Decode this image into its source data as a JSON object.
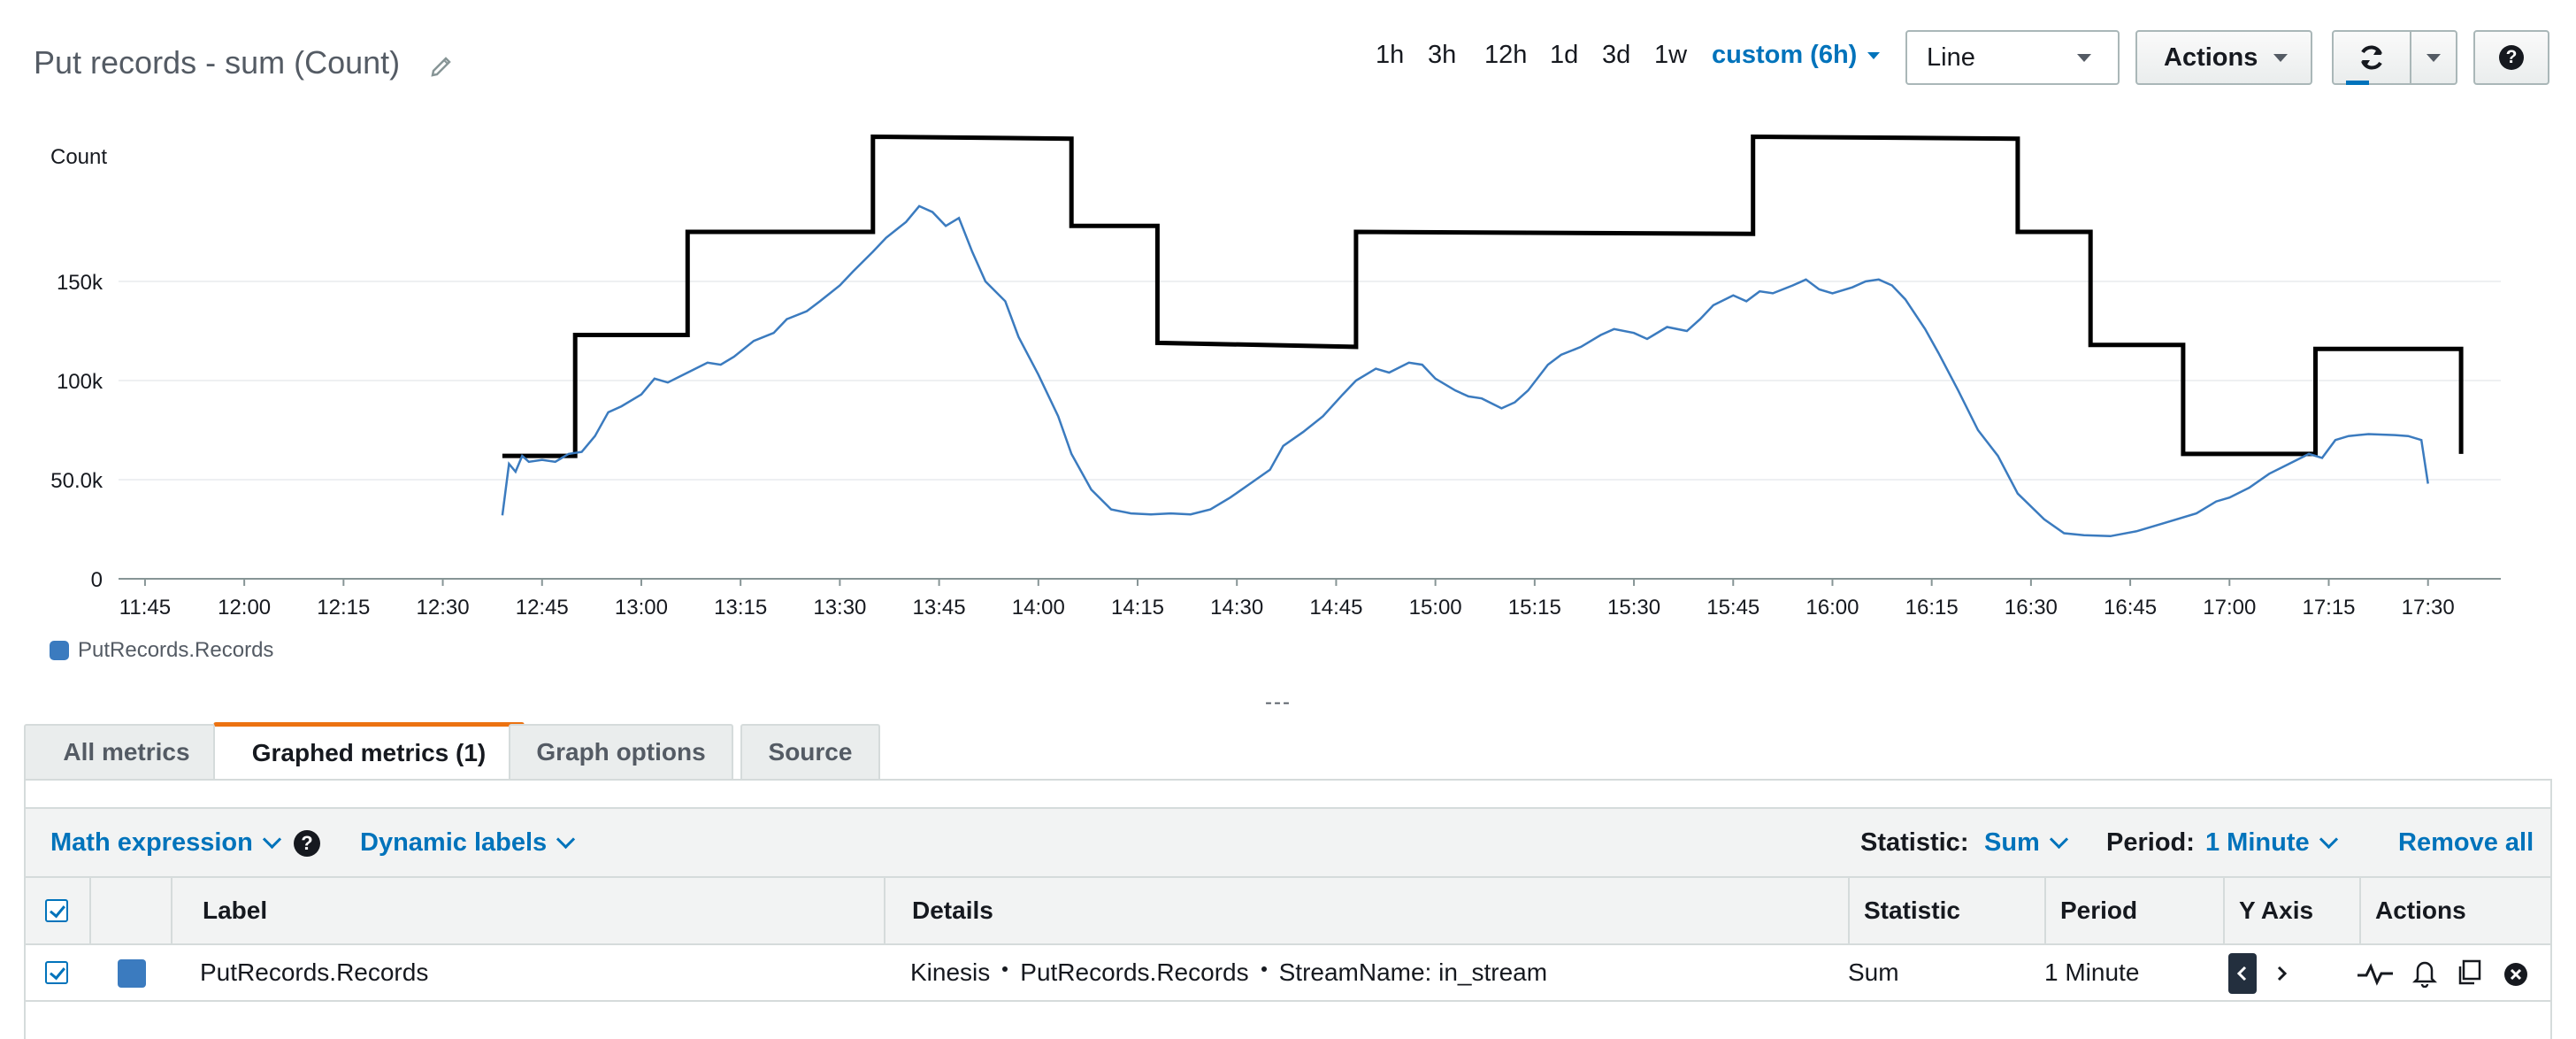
{
  "graph": {
    "title": "Put records - sum (Count)",
    "edit_icon": "pencil-icon"
  },
  "time_ranges": [
    "1h",
    "3h",
    "12h",
    "1d",
    "3d",
    "1w"
  ],
  "custom_range": "custom (6h)",
  "view_select": {
    "value": "Line"
  },
  "actions_label": "Actions",
  "refresh_icon": "refresh-icon",
  "help_icon": "help-icon",
  "chart_data": {
    "type": "line",
    "ylabel": "Count",
    "y_ticks": [
      "0",
      "50.0k",
      "100k",
      "150k"
    ],
    "ylim": [
      0,
      225000
    ],
    "x_ticks": [
      "11:45",
      "12:00",
      "12:15",
      "12:30",
      "12:45",
      "13:00",
      "13:15",
      "13:30",
      "13:45",
      "14:00",
      "14:15",
      "14:30",
      "14:45",
      "15:00",
      "15:15",
      "15:30",
      "15:45",
      "16:00",
      "16:15",
      "16:30",
      "16:45",
      "17:00",
      "17:15",
      "17:30"
    ],
    "xlim_minutes": [
      701,
      1061
    ],
    "grid": "horizontal",
    "legend_position": "bottom-left",
    "series": [
      {
        "name": "PutRecords.Records",
        "color": "#3b7bbf",
        "points": [
          [
            "12:39",
            32000
          ],
          [
            "12:40",
            58000
          ],
          [
            "12:41",
            54000
          ],
          [
            "12:42",
            62000
          ],
          [
            "12:43",
            59000
          ],
          [
            "12:45",
            60000
          ],
          [
            "12:47",
            59000
          ],
          [
            "12:49",
            63000
          ],
          [
            "12:51",
            64000
          ],
          [
            "12:53",
            72000
          ],
          [
            "12:55",
            84000
          ],
          [
            "12:57",
            87000
          ],
          [
            "13:00",
            93000
          ],
          [
            "13:02",
            101000
          ],
          [
            "13:04",
            99000
          ],
          [
            "13:07",
            104000
          ],
          [
            "13:10",
            109000
          ],
          [
            "13:12",
            108000
          ],
          [
            "13:14",
            112000
          ],
          [
            "13:17",
            120000
          ],
          [
            "13:20",
            124000
          ],
          [
            "13:22",
            131000
          ],
          [
            "13:25",
            135000
          ],
          [
            "13:27",
            140000
          ],
          [
            "13:30",
            148000
          ],
          [
            "13:32",
            155000
          ],
          [
            "13:35",
            165000
          ],
          [
            "13:37",
            172000
          ],
          [
            "13:40",
            180000
          ],
          [
            "13:42",
            188000
          ],
          [
            "13:44",
            185000
          ],
          [
            "13:46",
            178000
          ],
          [
            "13:48",
            182000
          ],
          [
            "13:50",
            165000
          ],
          [
            "13:52",
            150000
          ],
          [
            "13:55",
            140000
          ],
          [
            "13:57",
            122000
          ],
          [
            "14:00",
            103000
          ],
          [
            "14:03",
            82000
          ],
          [
            "14:05",
            63000
          ],
          [
            "14:08",
            45000
          ],
          [
            "14:11",
            35000
          ],
          [
            "14:14",
            33000
          ],
          [
            "14:17",
            32500
          ],
          [
            "14:20",
            33000
          ],
          [
            "14:23",
            32500
          ],
          [
            "14:26",
            35000
          ],
          [
            "14:29",
            41000
          ],
          [
            "14:32",
            48000
          ],
          [
            "14:35",
            55000
          ],
          [
            "14:37",
            67000
          ],
          [
            "14:40",
            74000
          ],
          [
            "14:43",
            82000
          ],
          [
            "14:46",
            93000
          ],
          [
            "14:48",
            100000
          ],
          [
            "14:51",
            106000
          ],
          [
            "14:53",
            104000
          ],
          [
            "14:56",
            109000
          ],
          [
            "14:58",
            108000
          ],
          [
            "15:00",
            101000
          ],
          [
            "15:03",
            95000
          ],
          [
            "15:05",
            92000
          ],
          [
            "15:07",
            91000
          ],
          [
            "15:10",
            86000
          ],
          [
            "15:12",
            89000
          ],
          [
            "15:14",
            95000
          ],
          [
            "15:17",
            108000
          ],
          [
            "15:19",
            113000
          ],
          [
            "15:22",
            117000
          ],
          [
            "15:25",
            123000
          ],
          [
            "15:27",
            126000
          ],
          [
            "15:30",
            124000
          ],
          [
            "15:32",
            121000
          ],
          [
            "15:35",
            127000
          ],
          [
            "15:38",
            125000
          ],
          [
            "15:40",
            131000
          ],
          [
            "15:42",
            138000
          ],
          [
            "15:45",
            143000
          ],
          [
            "15:47",
            140000
          ],
          [
            "15:49",
            145000
          ],
          [
            "15:51",
            144000
          ],
          [
            "15:54",
            148000
          ],
          [
            "15:56",
            151000
          ],
          [
            "15:58",
            146000
          ],
          [
            "16:00",
            144000
          ],
          [
            "16:03",
            147000
          ],
          [
            "16:05",
            150000
          ],
          [
            "16:07",
            151000
          ],
          [
            "16:09",
            148000
          ],
          [
            "16:11",
            141000
          ],
          [
            "16:14",
            126000
          ],
          [
            "16:16",
            114000
          ],
          [
            "16:19",
            95000
          ],
          [
            "16:22",
            75000
          ],
          [
            "16:25",
            62000
          ],
          [
            "16:28",
            43000
          ],
          [
            "16:32",
            30000
          ],
          [
            "16:35",
            23000
          ],
          [
            "16:38",
            22000
          ],
          [
            "16:42",
            21500
          ],
          [
            "16:46",
            24000
          ],
          [
            "16:50",
            28000
          ],
          [
            "16:55",
            33000
          ],
          [
            "16:58",
            39000
          ],
          [
            "17:00",
            41000
          ],
          [
            "17:03",
            46000
          ],
          [
            "17:06",
            53000
          ],
          [
            "17:09",
            58000
          ],
          [
            "17:12",
            63000
          ],
          [
            "17:14",
            61000
          ],
          [
            "17:16",
            70000
          ],
          [
            "17:18",
            72000
          ],
          [
            "17:21",
            73000
          ],
          [
            "17:25",
            72500
          ],
          [
            "17:27",
            72000
          ],
          [
            "17:29",
            70000
          ],
          [
            "17:30",
            48000
          ]
        ]
      }
    ],
    "annotation_steps": {
      "color": "#000000",
      "points": [
        [
          "12:39",
          62000
        ],
        [
          "12:50",
          62000
        ],
        [
          "12:50",
          123000
        ],
        [
          "13:07",
          123000
        ],
        [
          "13:07",
          175000
        ],
        [
          "13:35",
          175000
        ],
        [
          "13:35",
          223000
        ],
        [
          "14:05",
          222000
        ],
        [
          "14:05",
          178000
        ],
        [
          "14:18",
          178000
        ],
        [
          "14:18",
          119000
        ],
        [
          "14:48",
          117000
        ],
        [
          "14:48",
          175000
        ],
        [
          "15:48",
          174000
        ],
        [
          "15:48",
          223000
        ],
        [
          "16:28",
          222000
        ],
        [
          "16:28",
          175000
        ],
        [
          "16:39",
          175000
        ],
        [
          "16:39",
          118000
        ],
        [
          "16:53",
          118000
        ],
        [
          "16:53",
          63000
        ],
        [
          "17:13",
          63000
        ],
        [
          "17:13",
          116000
        ],
        [
          "17:35",
          116000
        ],
        [
          "17:35",
          63000
        ]
      ]
    }
  },
  "legend": {
    "label": "PutRecords.Records",
    "color": "#3b7bbf"
  },
  "resize_handle": "---",
  "tabs": [
    {
      "label": "All metrics",
      "active": false
    },
    {
      "label": "Graphed metrics (1)",
      "active": true
    },
    {
      "label": "Graph options",
      "active": false
    },
    {
      "label": "Source",
      "active": false
    }
  ],
  "toolbar": {
    "math_expression": "Math expression",
    "dynamic_labels": "Dynamic labels",
    "statistic_label": "Statistic:",
    "statistic_value": "Sum",
    "period_label": "Period:",
    "period_value": "1 Minute",
    "remove_all": "Remove all"
  },
  "table": {
    "headers": {
      "label": "Label",
      "details": "Details",
      "statistic": "Statistic",
      "period": "Period",
      "y_axis": "Y Axis",
      "actions": "Actions"
    },
    "rows": [
      {
        "label": "PutRecords.Records",
        "color": "#3b7bbf",
        "details": [
          "Kinesis",
          "PutRecords.Records",
          "StreamName: in_stream"
        ],
        "statistic": "Sum",
        "period": "1 Minute"
      }
    ]
  }
}
